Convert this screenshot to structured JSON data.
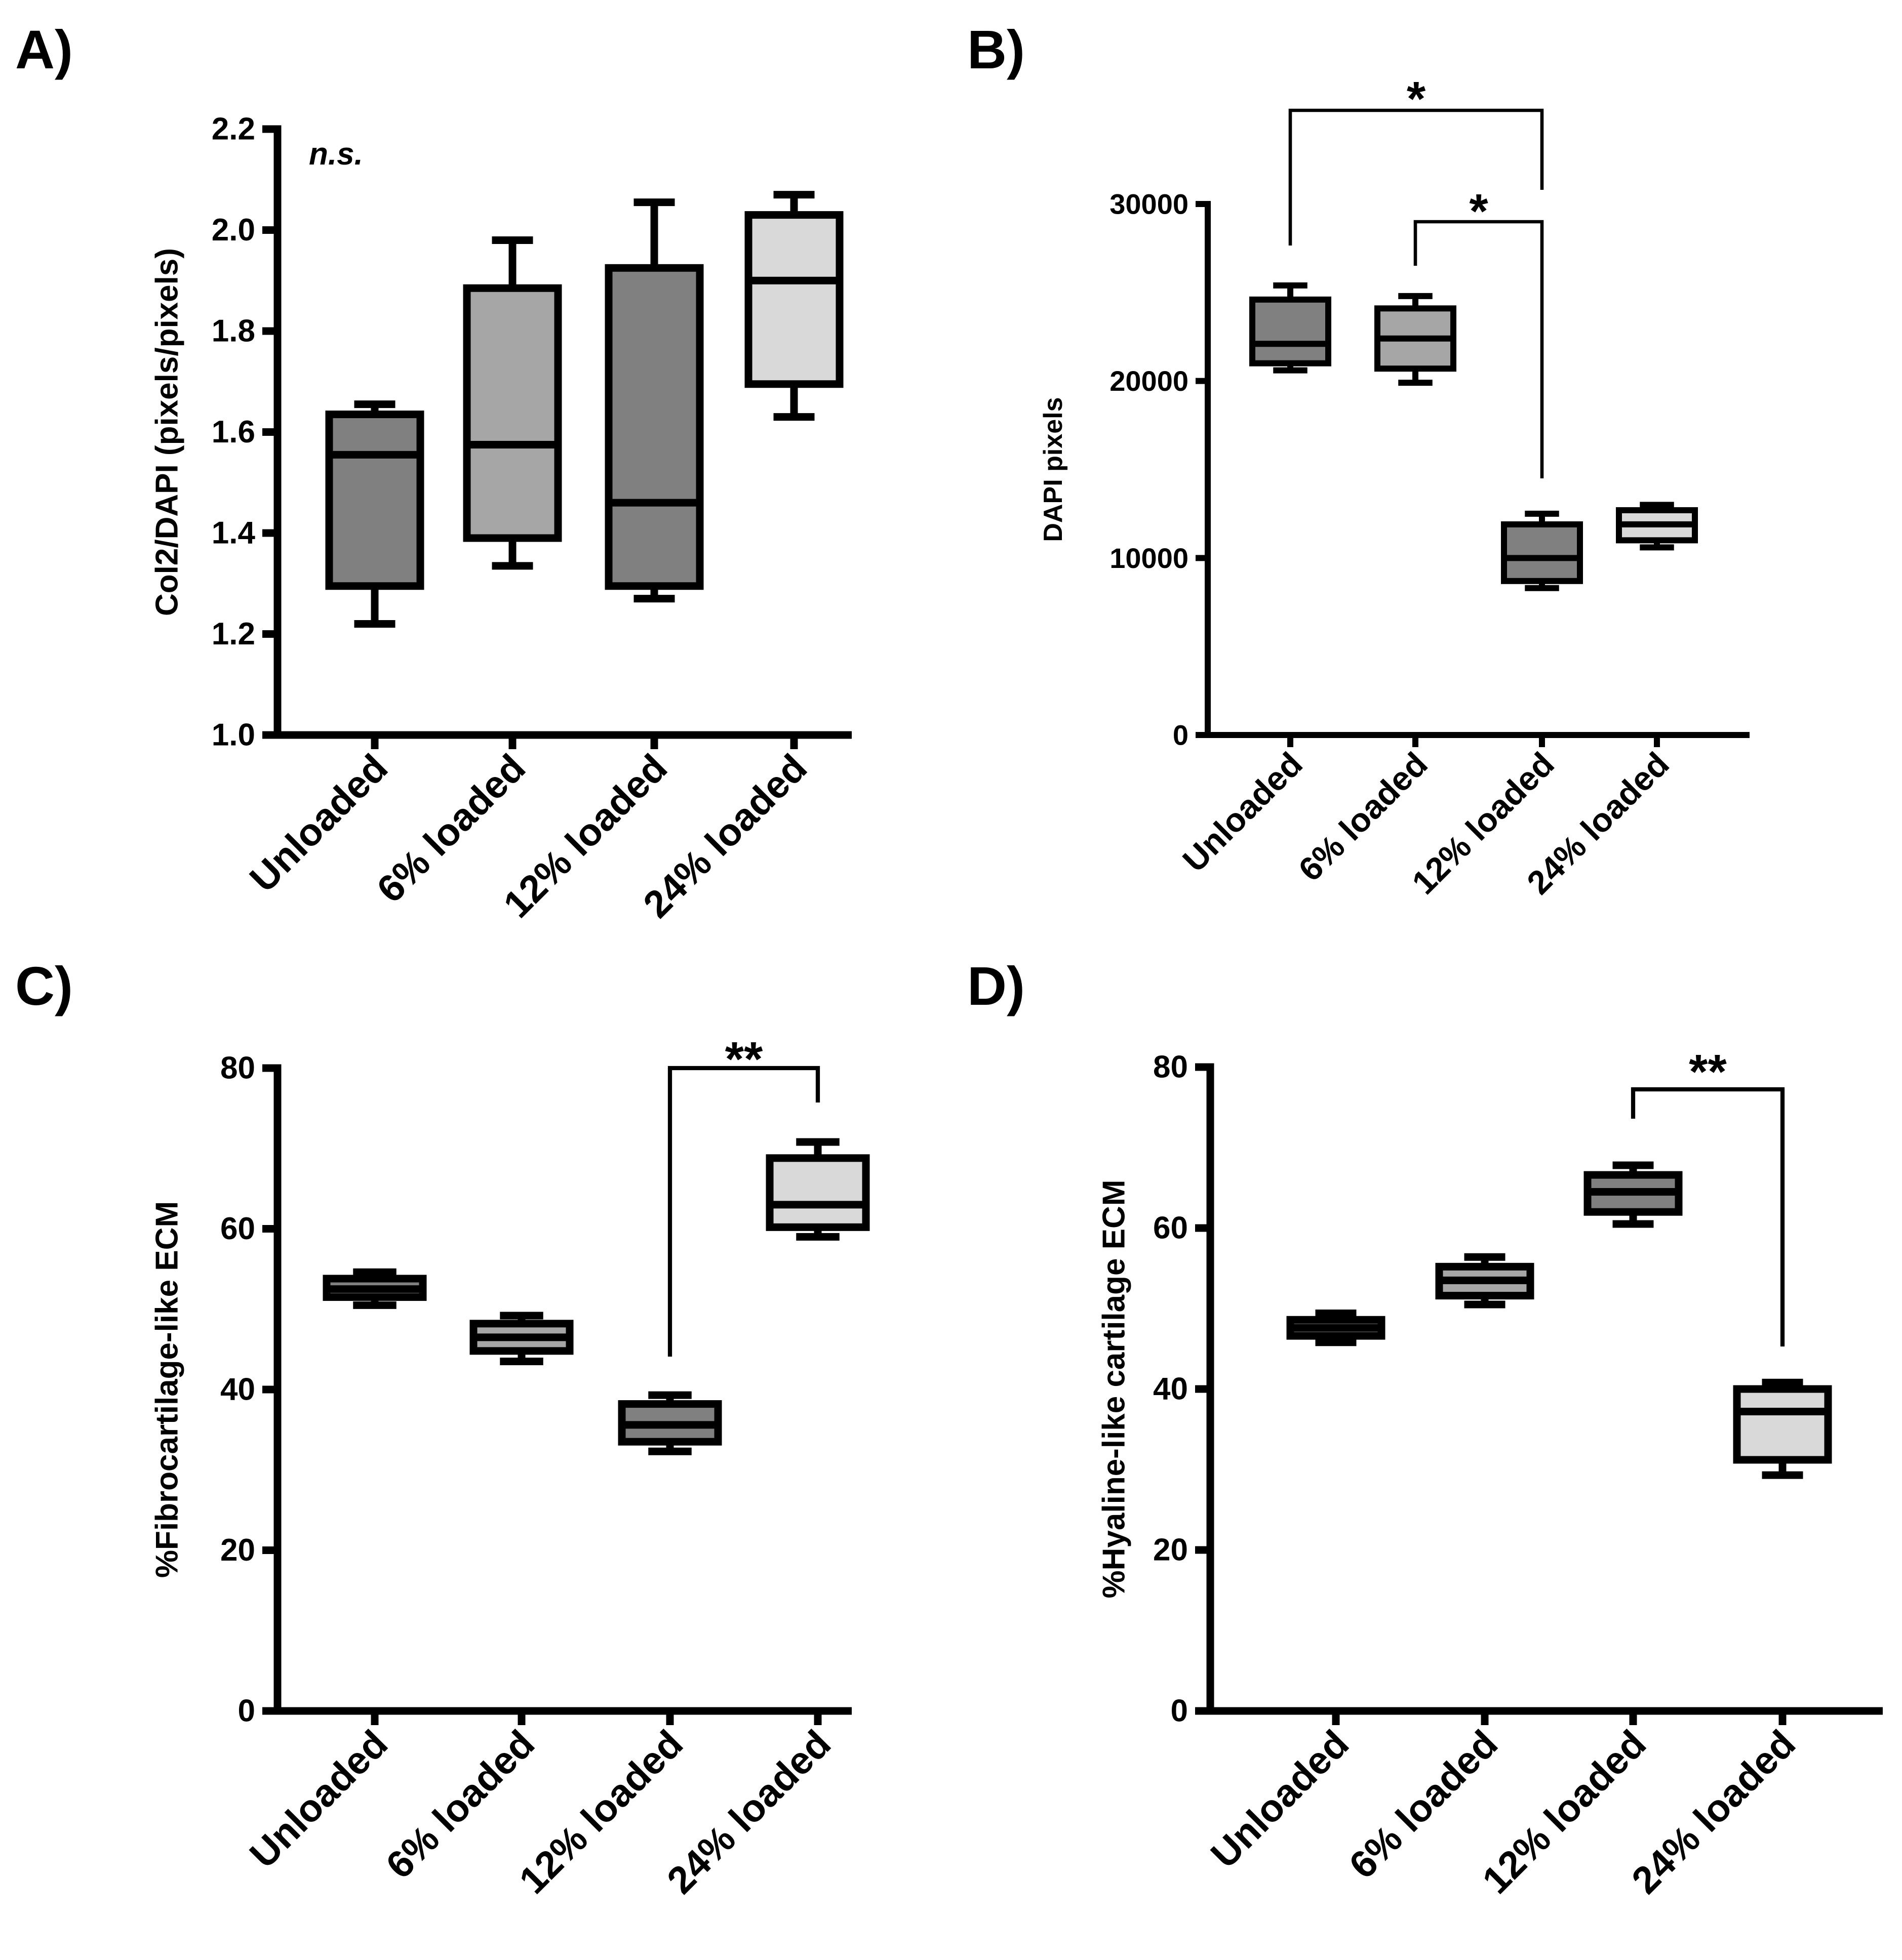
{
  "chart_data": [
    {
      "panel": "A)",
      "type": "box",
      "ylabel": "Col2/DAPI (pixels/pixels)",
      "ylim": [
        1.0,
        2.2
      ],
      "yticks": [
        "1.0",
        "1.2",
        "1.4",
        "1.6",
        "1.8",
        "2.0",
        "2.2"
      ],
      "categories": [
        "Unloaded",
        "6% loaded",
        "12% loaded",
        "24% loaded"
      ],
      "boxes": [
        {
          "min": 1.22,
          "q1": 1.295,
          "median": 1.555,
          "q3": 1.635,
          "max": 1.655,
          "color": "#808080"
        },
        {
          "min": 1.335,
          "q1": 1.39,
          "median": 1.575,
          "q3": 1.885,
          "max": 1.98,
          "color": "#a6a6a6"
        },
        {
          "min": 1.27,
          "q1": 1.295,
          "median": 1.46,
          "q3": 1.925,
          "max": 2.055,
          "color": "#808080"
        },
        {
          "min": 1.63,
          "q1": 1.695,
          "median": 1.9,
          "q3": 2.03,
          "max": 2.07,
          "color": "#d9d9d9"
        }
      ],
      "annotations": [
        {
          "text": "n.s."
        }
      ],
      "significance": []
    },
    {
      "panel": "B)",
      "type": "box",
      "ylabel": "DAPI pixels",
      "ylim": [
        0,
        30000
      ],
      "yticks": [
        "0",
        "10000",
        "20000",
        "30000"
      ],
      "categories": [
        "Unloaded",
        "6% loaded",
        "12% loaded",
        "24% loaded"
      ],
      "boxes": [
        {
          "min": 20600,
          "q1": 21000,
          "median": 22100,
          "q3": 24600,
          "max": 25400,
          "color": "#808080"
        },
        {
          "min": 19900,
          "q1": 20700,
          "median": 22400,
          "q3": 24100,
          "max": 24800,
          "color": "#a6a6a6"
        },
        {
          "min": 8300,
          "q1": 8700,
          "median": 10000,
          "q3": 11900,
          "max": 12500,
          "color": "#808080"
        },
        {
          "min": 10600,
          "q1": 11000,
          "median": 11900,
          "q3": 12700,
          "max": 13000,
          "color": "#d9d9d9"
        }
      ],
      "annotations": [],
      "significance": [
        {
          "from": 0,
          "to": 2,
          "label": "*"
        },
        {
          "from": 1,
          "to": 2,
          "label": "*"
        }
      ]
    },
    {
      "panel": "C)",
      "type": "box",
      "ylabel": "%Fibrocartilage-like ECM",
      "ylim": [
        0,
        80
      ],
      "yticks": [
        "0",
        "20",
        "40",
        "60",
        "80"
      ],
      "categories": [
        "Unloaded",
        "6% loaded",
        "12% loaded",
        "24% loaded"
      ],
      "boxes": [
        {
          "min": 50.5,
          "q1": 51.5,
          "median": 52.5,
          "q3": 53.8,
          "max": 54.6,
          "color": "#808080"
        },
        {
          "min": 43.5,
          "q1": 44.8,
          "median": 46.5,
          "q3": 48.2,
          "max": 49.2,
          "color": "#a6a6a6"
        },
        {
          "min": 32.3,
          "q1": 33.5,
          "median": 35.6,
          "q3": 38.2,
          "max": 39.3,
          "color": "#808080"
        },
        {
          "min": 59.0,
          "q1": 60.2,
          "median": 63.0,
          "q3": 68.8,
          "max": 70.8,
          "color": "#d9d9d9"
        }
      ],
      "annotations": [],
      "significance": [
        {
          "from": 2,
          "to": 3,
          "label": "**"
        }
      ]
    },
    {
      "panel": "D)",
      "type": "box",
      "ylabel": "%Hyaline-like cartilage ECM",
      "ylim": [
        0,
        80
      ],
      "yticks": [
        "0",
        "20",
        "40",
        "60",
        "80"
      ],
      "categories": [
        "Unloaded",
        "6% loaded",
        "12% loaded",
        "24% loaded"
      ],
      "boxes": [
        {
          "min": 45.8,
          "q1": 46.6,
          "median": 47.6,
          "q3": 48.6,
          "max": 49.4,
          "color": "#808080"
        },
        {
          "min": 50.5,
          "q1": 51.6,
          "median": 53.5,
          "q3": 55.2,
          "max": 56.4,
          "color": "#a6a6a6"
        },
        {
          "min": 60.5,
          "q1": 62.0,
          "median": 64.5,
          "q3": 66.6,
          "max": 67.8,
          "color": "#808080"
        },
        {
          "min": 29.3,
          "q1": 31.2,
          "median": 37.2,
          "q3": 40.0,
          "max": 40.8,
          "color": "#d9d9d9"
        }
      ],
      "annotations": [],
      "significance": [
        {
          "from": 2,
          "to": 3,
          "label": "**"
        }
      ]
    }
  ]
}
